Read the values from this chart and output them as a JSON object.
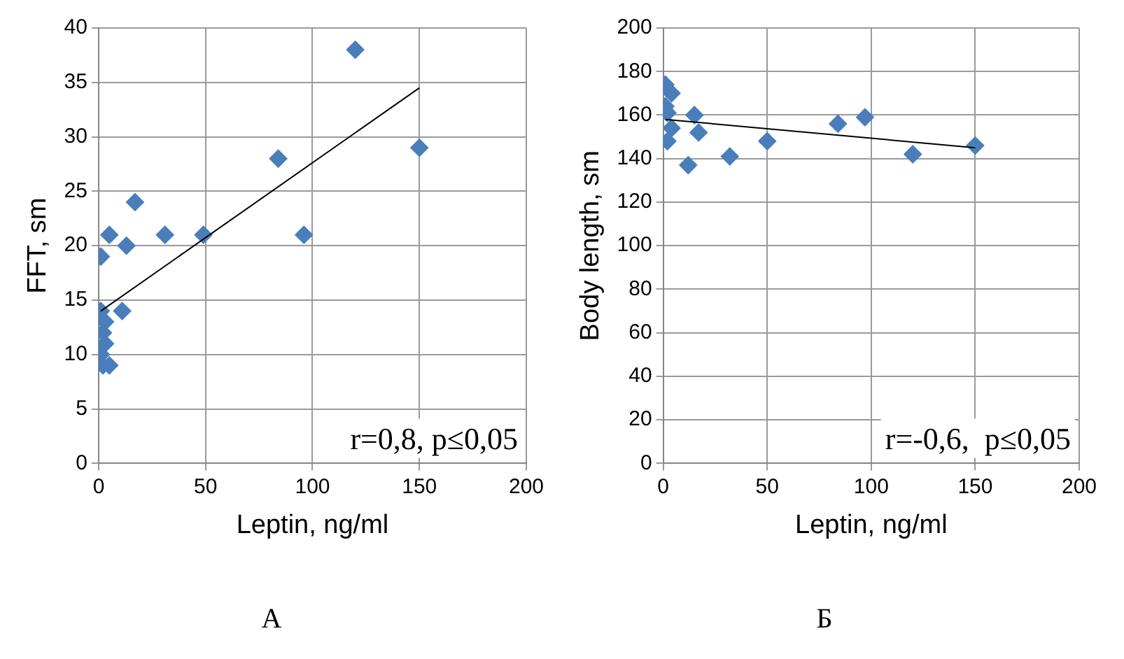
{
  "chart_data": [
    {
      "type": "scatter",
      "title": "А",
      "xlabel": "Leptin, ng/ml",
      "ylabel": "FFT, sm",
      "xlim": [
        0,
        200
      ],
      "xticks": [
        0,
        50,
        100,
        150,
        200
      ],
      "ylim": [
        0,
        40
      ],
      "yticks": [
        0,
        5,
        10,
        15,
        20,
        25,
        30,
        35,
        40
      ],
      "grid": true,
      "marker": "diamond",
      "legend": false,
      "annotations": [
        "r=0,8, p≤0,05"
      ],
      "series": [
        {
          "color": "#4a7ebb",
          "x": [
            1,
            5,
            13,
            17,
            31,
            49,
            84,
            96,
            120,
            150,
            1,
            11,
            3,
            2,
            3,
            1,
            2,
            5
          ],
          "values": [
            19,
            21,
            20,
            24,
            21,
            21,
            28,
            21,
            38,
            29,
            14,
            14,
            13,
            12,
            11,
            10,
            9,
            9
          ]
        },
        {
          "type": "line",
          "color": "#000000",
          "marker": "none",
          "x": [
            1,
            150
          ],
          "values": [
            14,
            34.5
          ]
        }
      ]
    },
    {
      "type": "scatter",
      "title": "Б",
      "xlabel": "Leptin, ng/ml",
      "ylabel": "Body length, sm",
      "xlim": [
        0,
        200
      ],
      "xticks": [
        0,
        50,
        100,
        150,
        200
      ],
      "ylim": [
        0,
        200
      ],
      "yticks": [
        0,
        20,
        40,
        60,
        80,
        100,
        120,
        140,
        160,
        180,
        200
      ],
      "grid": true,
      "marker": "diamond",
      "legend": false,
      "annotations": [
        "r=-0,6,  p≤0,05"
      ],
      "series": [
        {
          "color": "#4a7ebb",
          "x": [
            1,
            4,
            1,
            2,
            4,
            2,
            12,
            15,
            17,
            32,
            50,
            84,
            97,
            120,
            150
          ],
          "values": [
            174,
            170,
            164,
            161,
            154,
            148,
            137,
            160,
            152,
            141,
            148,
            156,
            159,
            142,
            146
          ]
        },
        {
          "type": "line",
          "color": "#000000",
          "marker": "none",
          "x": [
            1,
            150
          ],
          "values": [
            158,
            145
          ]
        }
      ]
    }
  ]
}
